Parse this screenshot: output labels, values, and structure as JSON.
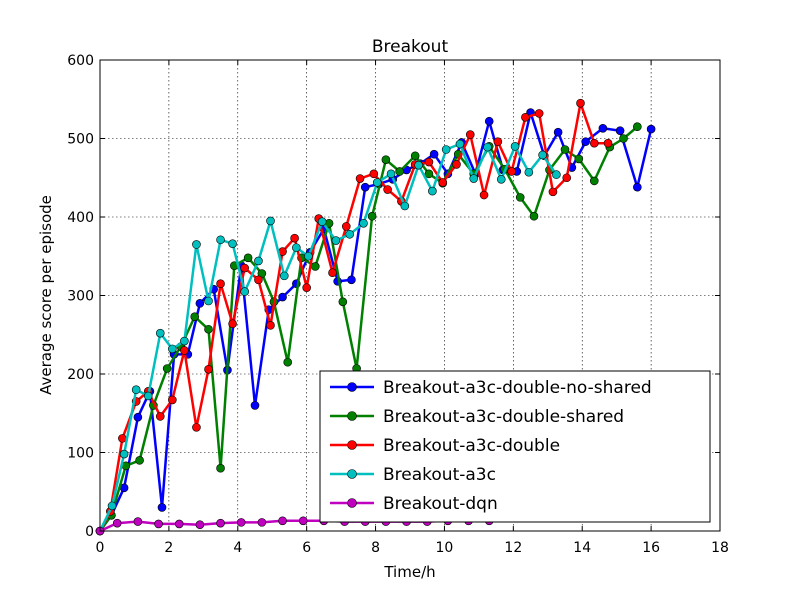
{
  "chart_data": {
    "type": "line",
    "title": "Breakout",
    "xlabel": "Time/h",
    "ylabel": "Average score per episode",
    "xlim": [
      0,
      18
    ],
    "ylim": [
      0,
      600
    ],
    "xticks": [
      0,
      2,
      4,
      6,
      8,
      10,
      12,
      14,
      16,
      18
    ],
    "yticks": [
      0,
      100,
      200,
      300,
      400,
      500,
      600
    ],
    "grid": true,
    "legend_position": "lower-right",
    "series": [
      {
        "name": "Breakout-a3c-double-no-shared",
        "color": "#0000ff",
        "points": [
          [
            0,
            0
          ],
          [
            0.33,
            20
          ],
          [
            0.7,
            55
          ],
          [
            1.1,
            145
          ],
          [
            1.45,
            178
          ],
          [
            1.8,
            30
          ],
          [
            2.15,
            225
          ],
          [
            2.55,
            225
          ],
          [
            2.9,
            290
          ],
          [
            3.3,
            308
          ],
          [
            3.7,
            205
          ],
          [
            4.1,
            338
          ],
          [
            4.5,
            160
          ],
          [
            4.9,
            282
          ],
          [
            5.3,
            298
          ],
          [
            5.7,
            315
          ],
          [
            6.1,
            355
          ],
          [
            6.5,
            385
          ],
          [
            6.9,
            318
          ],
          [
            7.3,
            320
          ],
          [
            7.7,
            438
          ],
          [
            8.1,
            442
          ],
          [
            8.5,
            448
          ],
          [
            8.9,
            460
          ],
          [
            9.3,
            468
          ],
          [
            9.7,
            480
          ],
          [
            10.1,
            455
          ],
          [
            10.5,
            495
          ],
          [
            10.9,
            455
          ],
          [
            11.3,
            522
          ],
          [
            11.7,
            460
          ],
          [
            12.1,
            458
          ],
          [
            12.5,
            533
          ],
          [
            12.9,
            478
          ],
          [
            13.3,
            508
          ],
          [
            13.7,
            463
          ],
          [
            14.1,
            496
          ],
          [
            14.6,
            513
          ],
          [
            15.1,
            510
          ],
          [
            15.6,
            438
          ],
          [
            16.0,
            512
          ]
        ]
      },
      {
        "name": "Breakout-a3c-double-shared",
        "color": "#008000",
        "points": [
          [
            0,
            0
          ],
          [
            0.33,
            20
          ],
          [
            0.75,
            83
          ],
          [
            1.15,
            90
          ],
          [
            1.55,
            160
          ],
          [
            1.95,
            207
          ],
          [
            2.35,
            235
          ],
          [
            2.75,
            273
          ],
          [
            3.15,
            257
          ],
          [
            3.5,
            80
          ],
          [
            3.9,
            338
          ],
          [
            4.3,
            348
          ],
          [
            4.7,
            328
          ],
          [
            5.05,
            292
          ],
          [
            5.45,
            215
          ],
          [
            5.85,
            348
          ],
          [
            6.25,
            337
          ],
          [
            6.65,
            392
          ],
          [
            7.05,
            292
          ],
          [
            7.45,
            207
          ],
          [
            7.9,
            401
          ],
          [
            8.3,
            473
          ],
          [
            8.7,
            458
          ],
          [
            9.15,
            478
          ],
          [
            9.55,
            455
          ],
          [
            9.95,
            443
          ],
          [
            10.4,
            480
          ],
          [
            10.85,
            455
          ],
          [
            11.3,
            490
          ],
          [
            11.75,
            461
          ],
          [
            12.2,
            425
          ],
          [
            12.6,
            401
          ],
          [
            13.05,
            460
          ],
          [
            13.5,
            486
          ],
          [
            13.9,
            474
          ],
          [
            14.35,
            446
          ],
          [
            14.8,
            489
          ],
          [
            15.2,
            500
          ],
          [
            15.6,
            515
          ]
        ]
      },
      {
        "name": "Breakout-a3c-double",
        "color": "#ff0000",
        "points": [
          [
            0,
            0
          ],
          [
            0.3,
            25
          ],
          [
            0.65,
            118
          ],
          [
            1.05,
            165
          ],
          [
            1.4,
            178
          ],
          [
            1.75,
            146
          ],
          [
            2.1,
            167
          ],
          [
            2.45,
            230
          ],
          [
            2.8,
            132
          ],
          [
            3.15,
            206
          ],
          [
            3.5,
            315
          ],
          [
            3.85,
            264
          ],
          [
            4.2,
            335
          ],
          [
            4.6,
            320
          ],
          [
            4.95,
            262
          ],
          [
            5.3,
            356
          ],
          [
            5.65,
            373
          ],
          [
            6.0,
            310
          ],
          [
            6.35,
            398
          ],
          [
            6.75,
            329
          ],
          [
            7.15,
            388
          ],
          [
            7.55,
            449
          ],
          [
            7.95,
            455
          ],
          [
            8.35,
            435
          ],
          [
            8.75,
            420
          ],
          [
            9.15,
            467
          ],
          [
            9.55,
            470
          ],
          [
            9.95,
            444
          ],
          [
            10.35,
            467
          ],
          [
            10.75,
            505
          ],
          [
            11.15,
            428
          ],
          [
            11.55,
            496
          ],
          [
            11.95,
            458
          ],
          [
            12.35,
            527
          ],
          [
            12.75,
            532
          ],
          [
            13.15,
            432
          ],
          [
            13.55,
            450
          ],
          [
            13.95,
            545
          ],
          [
            14.35,
            494
          ],
          [
            14.75,
            494
          ]
        ]
      },
      {
        "name": "Breakout-a3c",
        "color": "#00bfbf",
        "points": [
          [
            0,
            0
          ],
          [
            0.35,
            32
          ],
          [
            0.7,
            98
          ],
          [
            1.05,
            180
          ],
          [
            1.4,
            172
          ],
          [
            1.75,
            252
          ],
          [
            2.1,
            232
          ],
          [
            2.45,
            242
          ],
          [
            2.8,
            365
          ],
          [
            3.15,
            293
          ],
          [
            3.5,
            371
          ],
          [
            3.85,
            366
          ],
          [
            4.2,
            305
          ],
          [
            4.6,
            344
          ],
          [
            4.95,
            395
          ],
          [
            5.35,
            325
          ],
          [
            5.7,
            361
          ],
          [
            6.05,
            350
          ],
          [
            6.45,
            394
          ],
          [
            6.85,
            370
          ],
          [
            7.25,
            378
          ],
          [
            7.65,
            392
          ],
          [
            8.05,
            444
          ],
          [
            8.45,
            455
          ],
          [
            8.85,
            414
          ],
          [
            9.25,
            466
          ],
          [
            9.65,
            433
          ],
          [
            10.05,
            486
          ],
          [
            10.45,
            493
          ],
          [
            10.85,
            449
          ],
          [
            11.25,
            489
          ],
          [
            11.65,
            448
          ],
          [
            12.05,
            490
          ],
          [
            12.45,
            457
          ],
          [
            12.85,
            479
          ],
          [
            13.25,
            454
          ]
        ]
      },
      {
        "name": "Breakout-dqn",
        "color": "#bf00bf",
        "points": [
          [
            0,
            0
          ],
          [
            0.5,
            10
          ],
          [
            1.1,
            12
          ],
          [
            1.7,
            9
          ],
          [
            2.3,
            9
          ],
          [
            2.9,
            8
          ],
          [
            3.5,
            10
          ],
          [
            4.1,
            11
          ],
          [
            4.7,
            11
          ],
          [
            5.3,
            13
          ],
          [
            5.9,
            13
          ],
          [
            6.5,
            13
          ],
          [
            7.1,
            12
          ],
          [
            7.7,
            12
          ],
          [
            8.3,
            12
          ],
          [
            8.9,
            12
          ],
          [
            9.5,
            12
          ],
          [
            10.1,
            13
          ],
          [
            10.7,
            13
          ],
          [
            11.3,
            13
          ]
        ]
      }
    ]
  }
}
